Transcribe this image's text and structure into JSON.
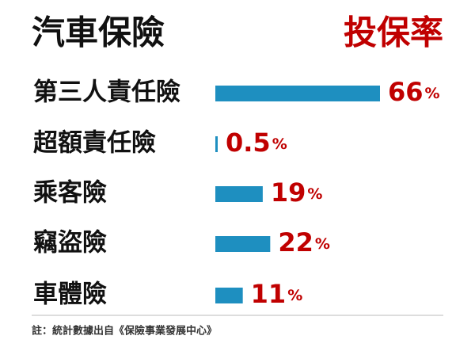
{
  "chart_data": {
    "type": "bar",
    "orientation": "horizontal",
    "title": "汽車保險",
    "subtitle": "投保率",
    "categories": [
      "第三人責任險",
      "超額責任險",
      "乘客險",
      "竊盜險",
      "車體險"
    ],
    "values": [
      66,
      0.5,
      19,
      22,
      11
    ],
    "value_labels": [
      "66%",
      "0.5%",
      "19%",
      "22%",
      "11%"
    ],
    "color": "#1e8fc0",
    "label_color": "#c00000",
    "note": "註：統計數據出自《保險事業發展中心》"
  }
}
